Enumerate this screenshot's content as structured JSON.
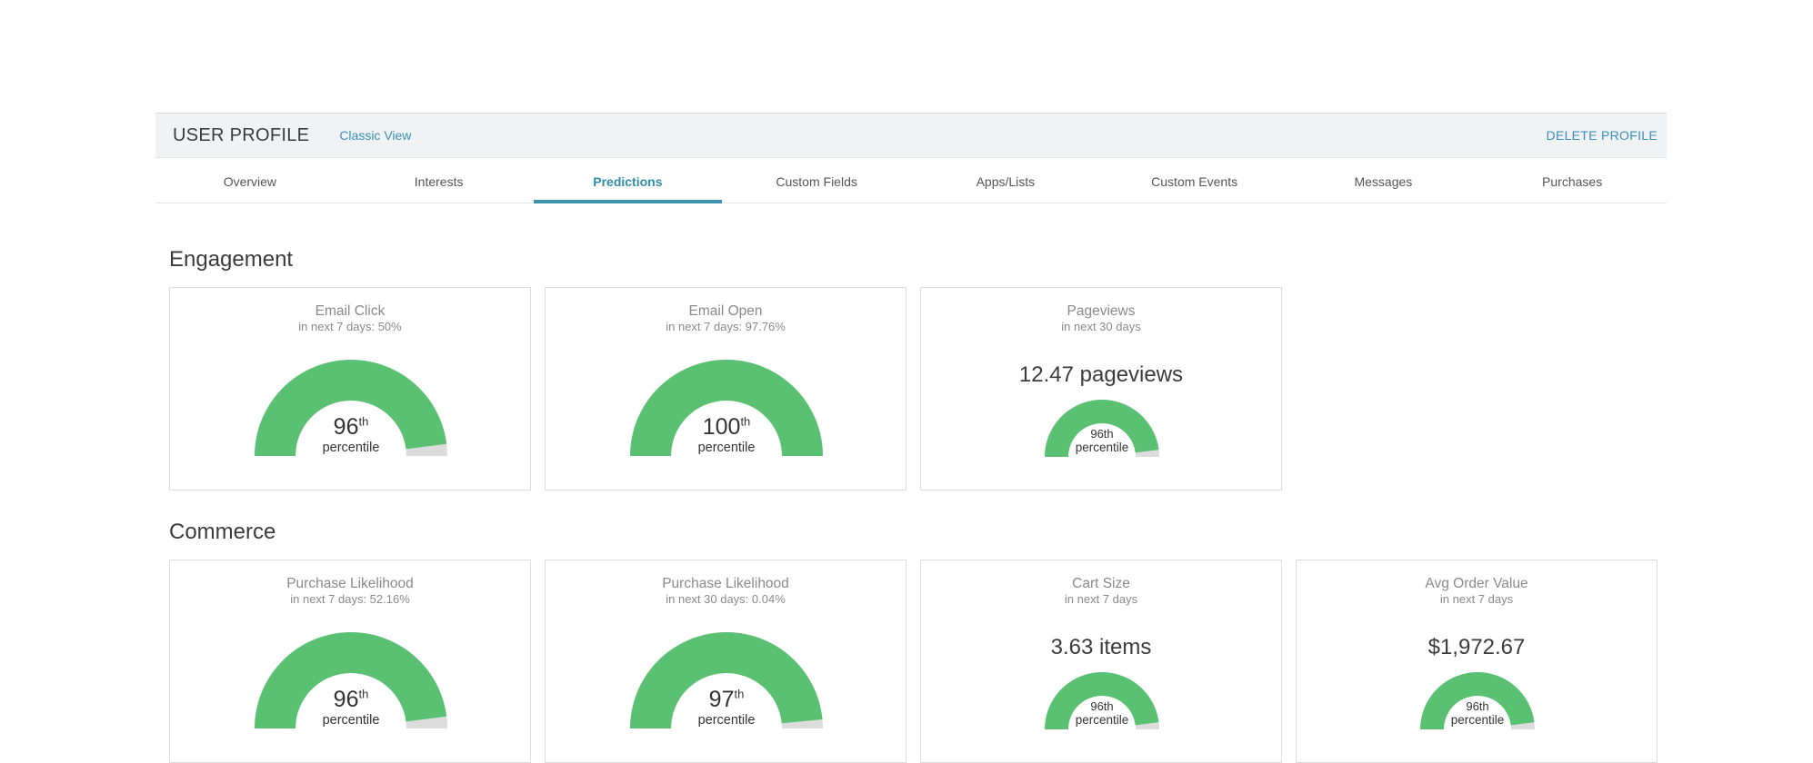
{
  "header": {
    "title": "USER PROFILE",
    "classic_view": "Classic View",
    "delete_profile": "DELETE PROFILE"
  },
  "tabs": [
    {
      "label": "Overview"
    },
    {
      "label": "Interests"
    },
    {
      "label": "Predictions",
      "active": true
    },
    {
      "label": "Custom Fields"
    },
    {
      "label": "Apps/Lists"
    },
    {
      "label": "Custom Events"
    },
    {
      "label": "Messages"
    },
    {
      "label": "Purchases"
    }
  ],
  "colors": {
    "gauge_fill": "#5ac173",
    "gauge_rest": "#dcdcdc",
    "accent": "#3a8fb7"
  },
  "engagement": {
    "title": "Engagement",
    "cards": [
      {
        "title": "Email Click",
        "subtitle": "in next 7 days: 50%",
        "percentile": 96,
        "pct_suffix": "th",
        "pct_label": "percentile"
      },
      {
        "title": "Email Open",
        "subtitle": "in next 7 days: 97.76%",
        "percentile": 100,
        "pct_suffix": "th",
        "pct_label": "percentile"
      },
      {
        "title": "Pageviews",
        "subtitle": "in next 30 days",
        "value": "12.47 pageviews",
        "percentile": 96,
        "pct_text": "96th",
        "pct_label": "percentile"
      }
    ]
  },
  "commerce": {
    "title": "Commerce",
    "cards": [
      {
        "title": "Purchase Likelihood",
        "subtitle": "in next 7 days: 52.16%",
        "percentile": 96,
        "pct_suffix": "th",
        "pct_label": "percentile"
      },
      {
        "title": "Purchase Likelihood",
        "subtitle": "in next 30 days: 0.04%",
        "percentile": 97,
        "pct_suffix": "th",
        "pct_label": "percentile"
      },
      {
        "title": "Cart Size",
        "subtitle": "in next 7 days",
        "value": "3.63 items",
        "percentile": 96,
        "pct_text": "96th",
        "pct_label": "percentile"
      },
      {
        "title": "Avg Order Value",
        "subtitle": "in next 7 days",
        "value": "$1,972.67",
        "percentile": 96,
        "pct_text": "96th",
        "pct_label": "percentile"
      }
    ]
  }
}
